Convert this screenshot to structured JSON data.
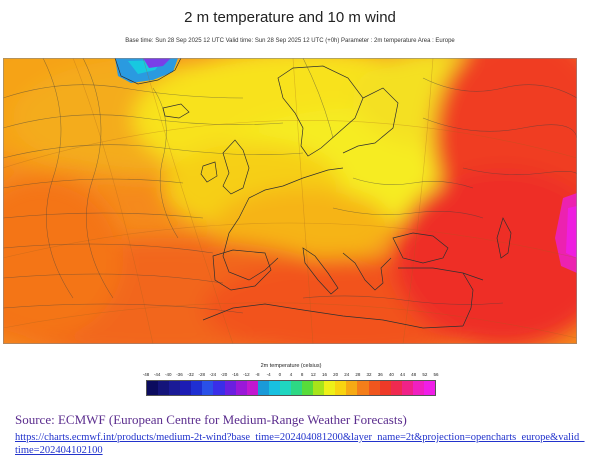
{
  "title": "2 m temperature and 10 m wind",
  "subtitle": "Base time: Sun 28 Sep 2025 12 UTC Valid time: Sun 28 Sep 2025 12 UTC (+0h) Parameter : 2m temperature Area : Europe",
  "legend": {
    "title": "2m temperature (celsius)",
    "ticks": [
      "-48",
      "-44",
      "-40",
      "-36",
      "-32",
      "-28",
      "-24",
      "-20",
      "-16",
      "-12",
      "-8",
      "-4",
      "0",
      "4",
      "8",
      "12",
      "16",
      "20",
      "24",
      "28",
      "32",
      "36",
      "40",
      "44",
      "48",
      "52",
      "56"
    ],
    "colors": [
      "#0b0b5e",
      "#14147a",
      "#1a1a96",
      "#1c1cb4",
      "#1f2fd2",
      "#2a50e8",
      "#3a2ee8",
      "#6a1fe0",
      "#9a18d8",
      "#c218d0",
      "#1a9ad8",
      "#18c0e0",
      "#20d6c0",
      "#2ed884",
      "#58dc3a",
      "#a8e41a",
      "#eef018",
      "#f8d410",
      "#f6aa14",
      "#f47e1a",
      "#f0561e",
      "#ee3a28",
      "#f02a50",
      "#f02288",
      "#f020c0",
      "#f01ee8"
    ]
  },
  "source": {
    "text": "Source: ECMWF (European Centre for Medium-Range Weather Forecasts)",
    "url": "https://charts.ecmwf.int/products/medium-2t-wind?base_time=202404081200&layer_name=2t&projection=opencharts_europe&valid_time=202404102100"
  }
}
